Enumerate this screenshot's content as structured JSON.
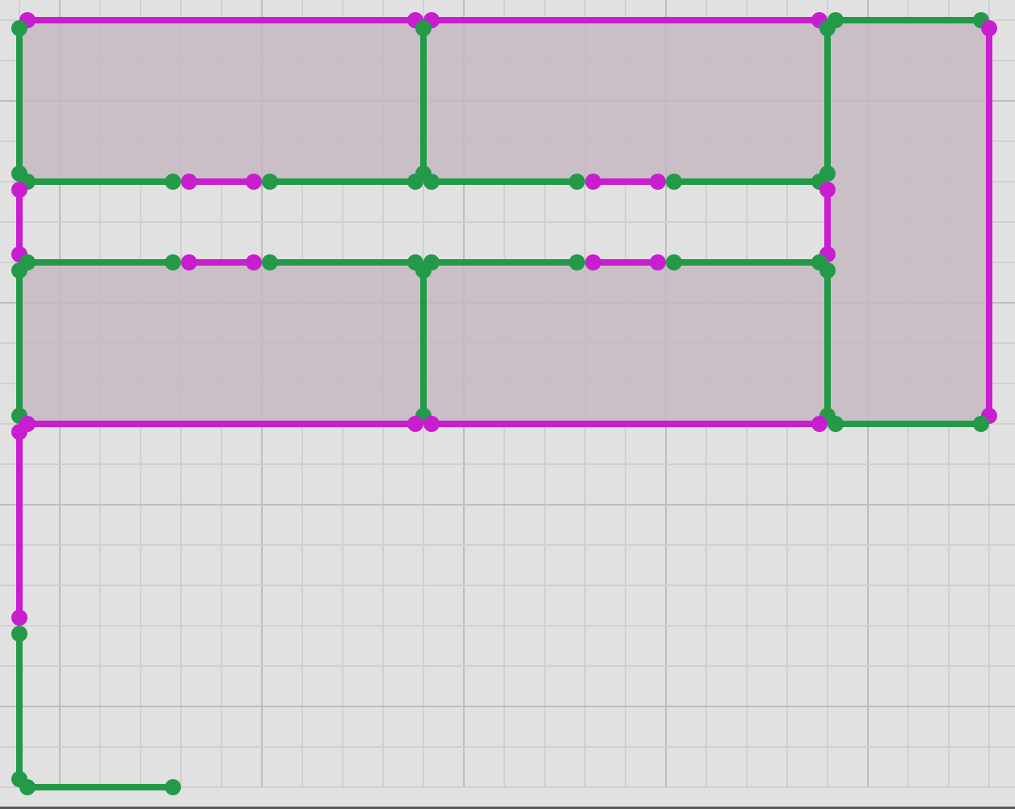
{
  "canvas": {
    "background": "#e1e1e1",
    "grid_minor_color": "#d0d0d0",
    "grid_major_color": "#bdbdbd",
    "room_fill": "#c6b8c2",
    "wall_colors": {
      "green": "#239a48",
      "magenta": "#c81ecf"
    },
    "room_count": 5,
    "wall_segment_count": 29
  }
}
